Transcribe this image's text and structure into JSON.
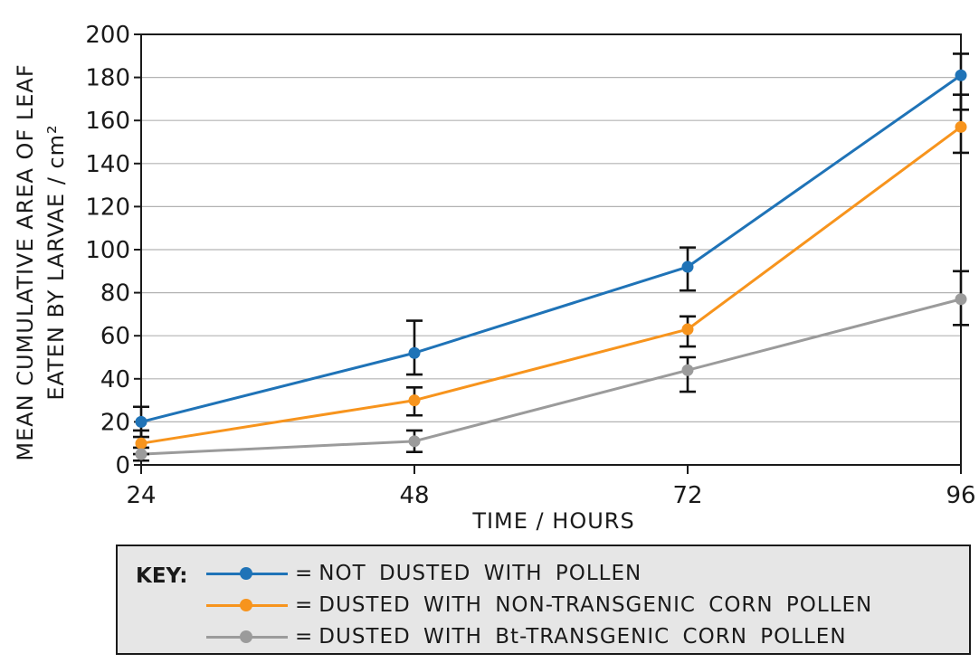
{
  "chart_data": {
    "type": "line",
    "ylabel_line1": "MEAN CUMULATIVE AREA OF LEAF",
    "ylabel_line2": "EATEN BY LARVAE / cm²",
    "xlabel": "TIME / HOURS",
    "x": [
      24,
      48,
      72,
      96
    ],
    "xticks": [
      "24",
      "48",
      "72",
      "96"
    ],
    "yticks": [
      "0",
      "20",
      "40",
      "60",
      "80",
      "100",
      "120",
      "140",
      "160",
      "180",
      "200"
    ],
    "ylim": [
      0,
      200
    ],
    "grid": true,
    "series": [
      {
        "name": "NOT DUSTED WITH POLLEN",
        "color": "#1f73b7",
        "values": [
          20,
          52,
          92,
          181
        ],
        "error_low": [
          13,
          42,
          81,
          165
        ],
        "error_high": [
          27,
          67,
          101,
          191
        ]
      },
      {
        "name": "DUSTED WITH NON-TRANSGENIC CORN POLLEN",
        "color": "#f7941d",
        "values": [
          10,
          30,
          63,
          157
        ],
        "error_low": [
          5,
          23,
          55,
          145
        ],
        "error_high": [
          16,
          36,
          69,
          172
        ]
      },
      {
        "name": "DUSTED WITH Bt-TRANSGENIC CORN POLLEN",
        "color": "#9b9b9b",
        "values": [
          5,
          11,
          44,
          77
        ],
        "error_low": [
          2,
          6,
          34,
          65
        ],
        "error_high": [
          8,
          16,
          50,
          90
        ]
      }
    ]
  },
  "key": {
    "title": "KEY:",
    "equals": "="
  }
}
